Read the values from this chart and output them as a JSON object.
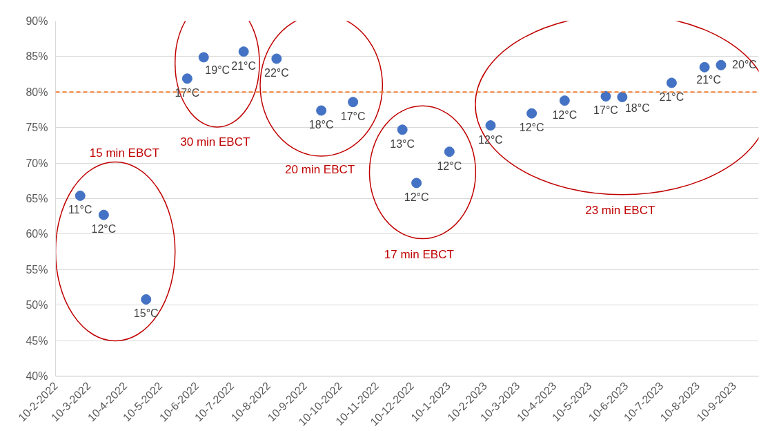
{
  "chart_data": {
    "type": "scatter",
    "x": [
      "2022-03-03",
      "2022-03-23",
      "2022-04-28",
      "2022-06-02",
      "2022-06-16",
      "2022-07-20",
      "2022-08-17",
      "2022-09-24",
      "2022-10-21",
      "2022-12-02",
      "2022-12-14",
      "2023-01-11",
      "2023-02-15",
      "2023-03-22",
      "2023-04-19",
      "2023-05-24",
      "2023-06-07",
      "2023-07-19",
      "2023-08-16",
      "2023-08-30"
    ],
    "values": [
      65.4,
      62.7,
      50.8,
      81.9,
      84.9,
      85.7,
      84.7,
      77.4,
      78.6,
      74.7,
      67.2,
      71.6,
      75.3,
      77.0,
      78.8,
      79.4,
      79.3,
      81.3,
      83.5,
      83.8
    ],
    "color": "#4472c4",
    "marker": "circle",
    "xlim": [
      "2022-02-10",
      "2023-10-01"
    ],
    "xticks": [
      {
        "value": "2022-02-10",
        "label": "10-2-2022"
      },
      {
        "value": "2022-03-10",
        "label": "10-3-2022"
      },
      {
        "value": "2022-04-10",
        "label": "10-4-2022"
      },
      {
        "value": "2022-05-10",
        "label": "10-5-2022"
      },
      {
        "value": "2022-06-10",
        "label": "10-6-2022"
      },
      {
        "value": "2022-07-10",
        "label": "10-7-2022"
      },
      {
        "value": "2022-08-10",
        "label": "10-8-2022"
      },
      {
        "value": "2022-09-10",
        "label": "10-9-2022"
      },
      {
        "value": "2022-10-10",
        "label": "10-10-2022"
      },
      {
        "value": "2022-11-10",
        "label": "10-11-2022"
      },
      {
        "value": "2022-12-10",
        "label": "10-12-2022"
      },
      {
        "value": "2023-01-10",
        "label": "10-1-2023"
      },
      {
        "value": "2023-02-10",
        "label": "10-2-2023"
      },
      {
        "value": "2023-03-10",
        "label": "10-3-2023"
      },
      {
        "value": "2023-04-10",
        "label": "10-4-2023"
      },
      {
        "value": "2023-05-10",
        "label": "10-5-2023"
      },
      {
        "value": "2023-06-10",
        "label": "10-6-2023"
      },
      {
        "value": "2023-07-10",
        "label": "10-7-2023"
      },
      {
        "value": "2023-08-10",
        "label": "10-8-2023"
      },
      {
        "value": "2023-09-10",
        "label": "10-9-2023"
      }
    ],
    "ylim": [
      40,
      90
    ],
    "yticks": [
      {
        "value": 40,
        "label": "40%"
      },
      {
        "value": 45,
        "label": "45%"
      },
      {
        "value": 50,
        "label": "50%"
      },
      {
        "value": 55,
        "label": "55%"
      },
      {
        "value": 60,
        "label": "60%"
      },
      {
        "value": 65,
        "label": "65%"
      },
      {
        "value": 70,
        "label": "70%"
      },
      {
        "value": 75,
        "label": "75%"
      },
      {
        "value": 80,
        "label": "80%"
      },
      {
        "value": 85,
        "label": "85%"
      },
      {
        "value": 90,
        "label": "90%"
      }
    ],
    "grid": "y",
    "ref_lines": [
      {
        "axis": "y",
        "value": 80,
        "color": "#ed7d31",
        "line_style": "dashed"
      }
    ],
    "annotations": [
      {
        "text": "11°C",
        "x": "2022-03-03",
        "y": 65.4
      },
      {
        "text": "12°C",
        "x": "2022-03-23",
        "y": 62.7
      },
      {
        "text": "15°C",
        "x": "2022-04-28",
        "y": 50.8
      },
      {
        "text": "17°C",
        "x": "2022-06-02",
        "y": 81.9
      },
      {
        "text": "19°C",
        "x": "2022-06-16",
        "y": 84.9
      },
      {
        "text": "21°C",
        "x": "2022-07-20",
        "y": 85.7
      },
      {
        "text": "22°C",
        "x": "2022-08-17",
        "y": 84.7
      },
      {
        "text": "18°C",
        "x": "2022-09-24",
        "y": 77.4
      },
      {
        "text": "17°C",
        "x": "2022-10-21",
        "y": 78.6
      },
      {
        "text": "13°C",
        "x": "2022-12-02",
        "y": 74.7
      },
      {
        "text": "12°C",
        "x": "2022-12-14",
        "y": 67.2
      },
      {
        "text": "12°C",
        "x": "2023-01-11",
        "y": 71.6
      },
      {
        "text": "12°C",
        "x": "2023-02-15",
        "y": 75.3
      },
      {
        "text": "12°C",
        "x": "2023-03-22",
        "y": 77.0
      },
      {
        "text": "12°C",
        "x": "2023-04-19",
        "y": 78.8
      },
      {
        "text": "17°C",
        "x": "2023-05-24",
        "y": 79.4
      },
      {
        "text": "18°C",
        "x": "2023-06-07",
        "y": 79.3
      },
      {
        "text": "21°C",
        "x": "2023-07-19",
        "y": 81.3
      },
      {
        "text": "21°C",
        "x": "2023-08-16",
        "y": 83.5
      },
      {
        "text": "20°C",
        "x": "2023-08-30",
        "y": 83.8
      },
      "15 min EBCT",
      "30 min EBCT",
      "20 min EBCT",
      "17 min EBCT",
      "23 min EBCT"
    ]
  }
}
